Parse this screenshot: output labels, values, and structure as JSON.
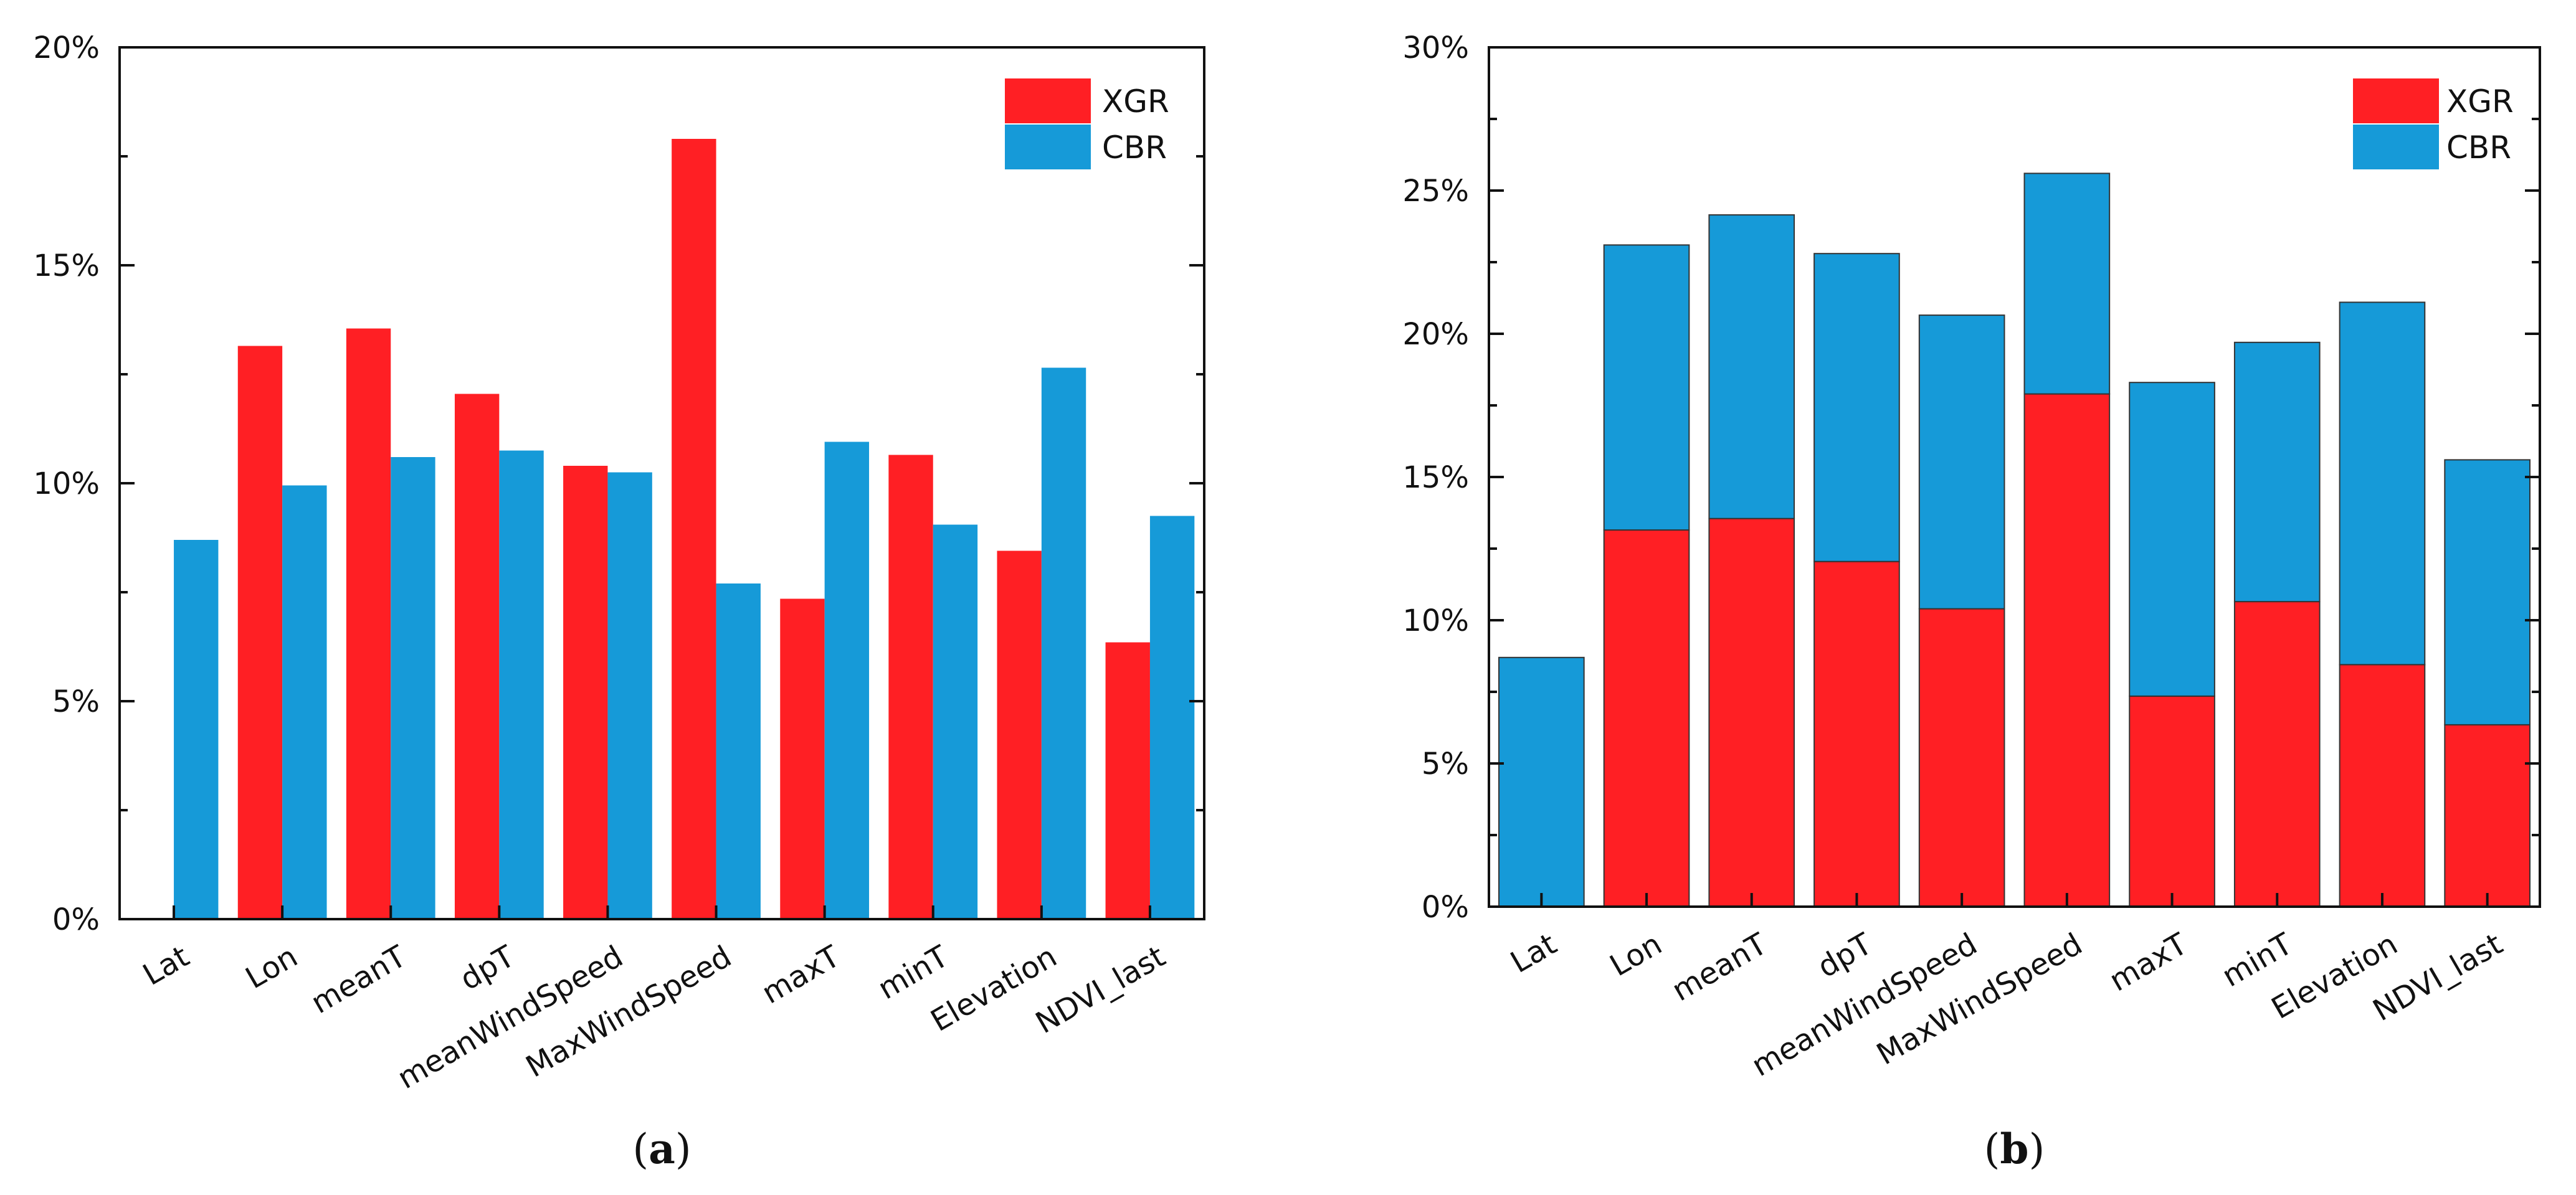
{
  "chart_data": [
    {
      "panel": "a",
      "type": "bar",
      "mode": "grouped",
      "categories": [
        "Lat",
        "Lon",
        "meanT",
        "dpT",
        "meanWindSpeed",
        "MaxWindSpeed",
        "maxT",
        "minT",
        "Elevation",
        "NDVI_last"
      ],
      "series": [
        {
          "name": "XGR",
          "color": "#ff1f24",
          "values": [
            0,
            13.15,
            13.55,
            12.05,
            10.4,
            17.9,
            7.35,
            10.65,
            8.45,
            6.35
          ]
        },
        {
          "name": "CBR",
          "color": "#169ad8",
          "values": [
            8.7,
            9.95,
            10.6,
            10.75,
            10.25,
            7.7,
            10.95,
            9.05,
            12.65,
            9.25
          ]
        }
      ],
      "ylim": [
        0,
        20
      ],
      "yticks": [
        0,
        5,
        10,
        15,
        20
      ],
      "ytick_labels": [
        "0%",
        "5%",
        "10%",
        "15%",
        "20%"
      ],
      "legend_position": "top-right",
      "label": "(a)",
      "label_letter": "a"
    },
    {
      "panel": "b",
      "type": "bar",
      "mode": "stacked",
      "categories": [
        "Lat",
        "Lon",
        "meanT",
        "dpT",
        "meanWindSpeed",
        "MaxWindSpeed",
        "maxT",
        "minT",
        "Elevation",
        "NDVI_last"
      ],
      "series": [
        {
          "name": "XGR",
          "color": "#ff1f24",
          "values": [
            0,
            13.15,
            13.55,
            12.05,
            10.4,
            17.9,
            7.35,
            10.65,
            8.45,
            6.35
          ]
        },
        {
          "name": "CBR",
          "color": "#169ad8",
          "values": [
            8.7,
            9.95,
            10.6,
            10.75,
            10.25,
            7.7,
            10.95,
            9.05,
            12.65,
            9.25
          ]
        }
      ],
      "ylim": [
        0,
        30
      ],
      "yticks": [
        0,
        5,
        10,
        15,
        20,
        25,
        30
      ],
      "ytick_labels": [
        "0%",
        "5%",
        "10%",
        "15%",
        "20%",
        "25%",
        "30%"
      ],
      "legend_position": "top-right",
      "label": "(b)",
      "label_letter": "b"
    }
  ]
}
